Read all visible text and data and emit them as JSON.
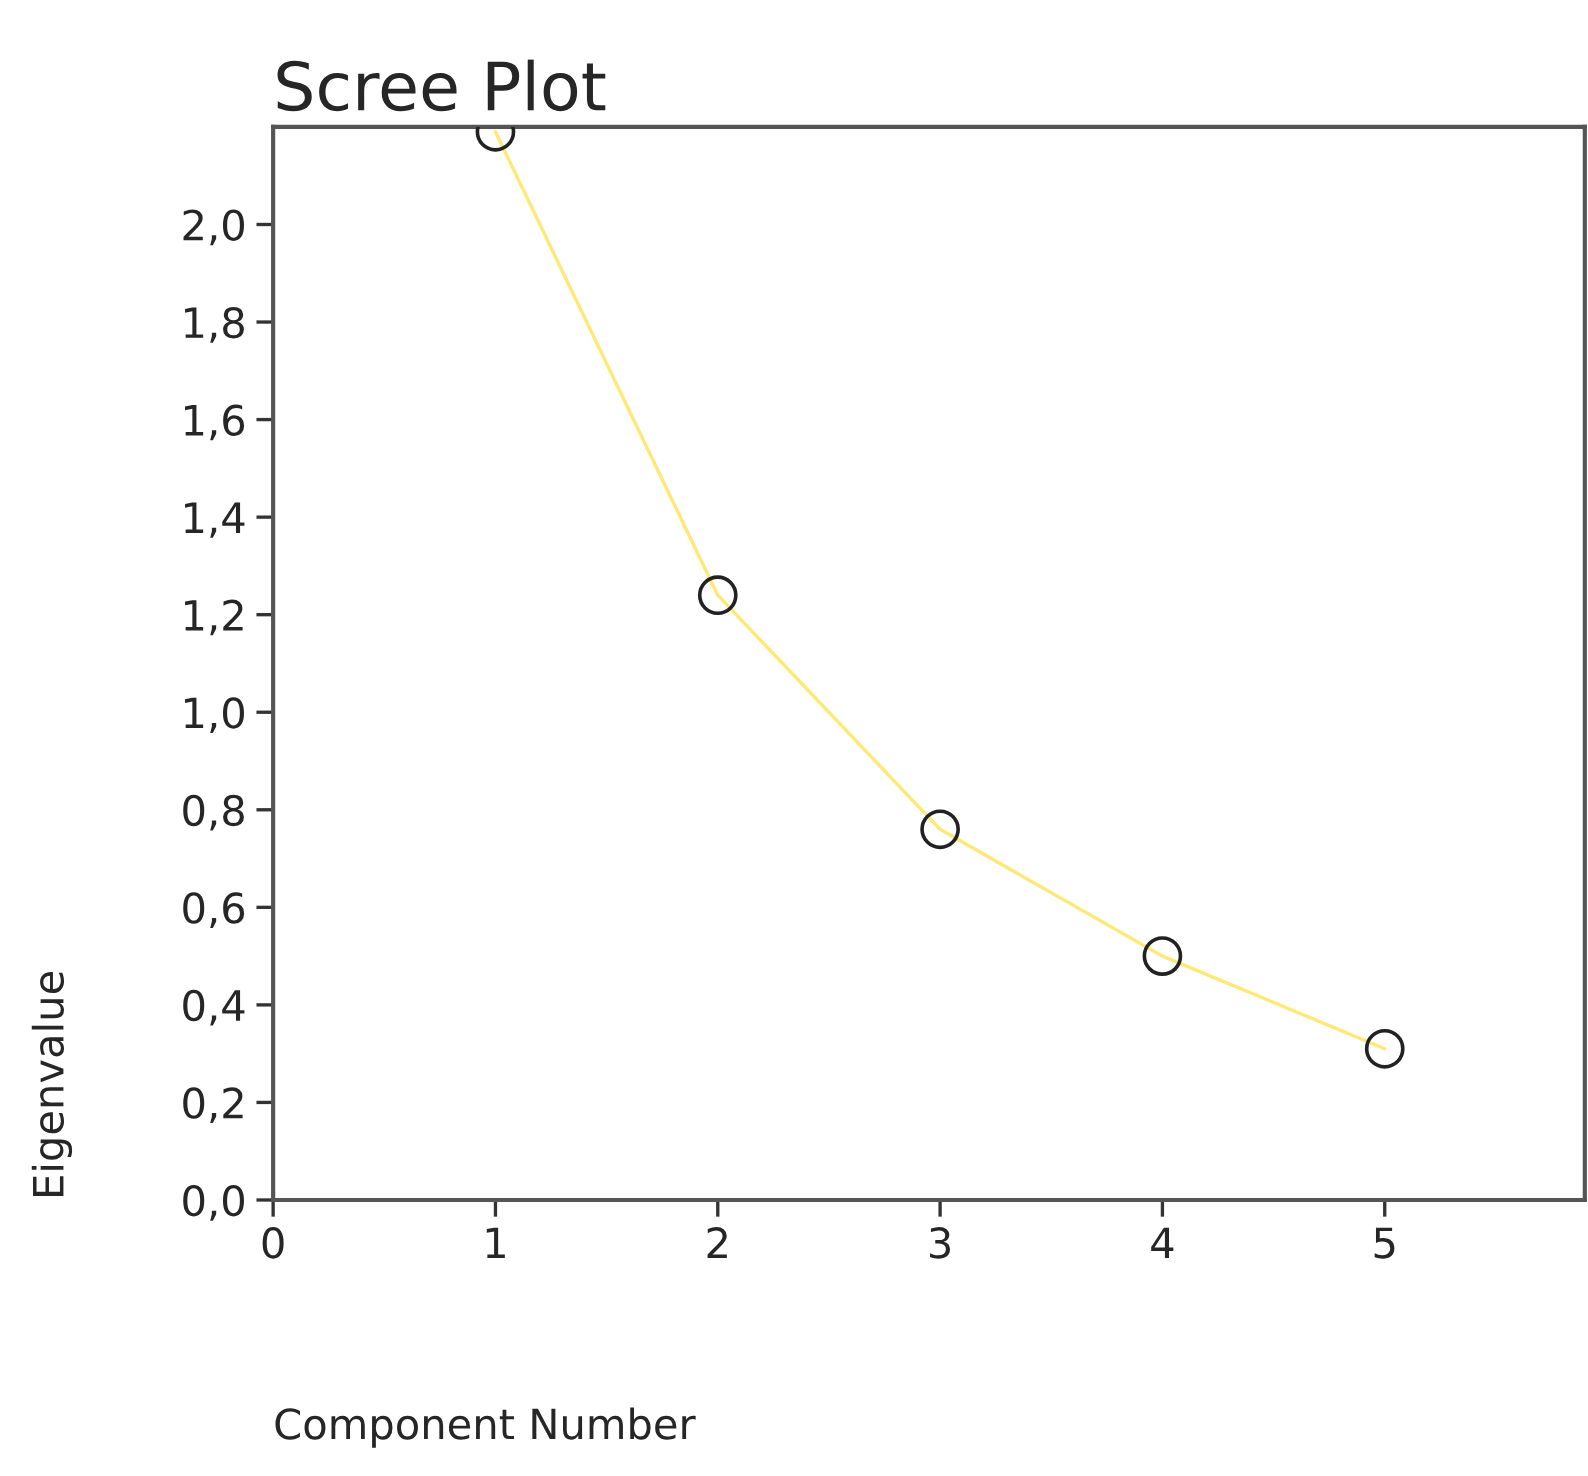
{
  "chart_data": {
    "type": "line",
    "title": "Scree Plot",
    "xlabel": "Component Number",
    "ylabel": "Eigenvalue",
    "x": [
      1,
      2,
      3,
      4,
      5
    ],
    "series": [
      {
        "color": "#ffe873",
        "values": [
          2.19,
          1.24,
          0.76,
          0.5,
          0.31
        ]
      }
    ],
    "xlim": [
      0,
      5.9
    ],
    "xticks": [
      0,
      1,
      2,
      3,
      4,
      5
    ],
    "ylim": [
      0,
      2.2
    ],
    "yticks": [
      {
        "value": 0,
        "label": "0,0"
      },
      {
        "value": 0.2,
        "label": "0,2"
      },
      {
        "value": 0.4,
        "label": "0,4"
      },
      {
        "value": 0.6,
        "label": "0,6"
      },
      {
        "value": 0.8,
        "label": "0,8"
      },
      {
        "value": 1.0,
        "label": "1,0"
      },
      {
        "value": 1.2,
        "label": "1,2"
      },
      {
        "value": 1.4,
        "label": "1,4"
      },
      {
        "value": 1.6,
        "label": "1,6"
      },
      {
        "value": 1.8,
        "label": "1,8"
      },
      {
        "value": 2.0,
        "label": "2,0"
      }
    ],
    "marker": "circle",
    "line_style": "solid",
    "grid": false,
    "legend": false
  }
}
